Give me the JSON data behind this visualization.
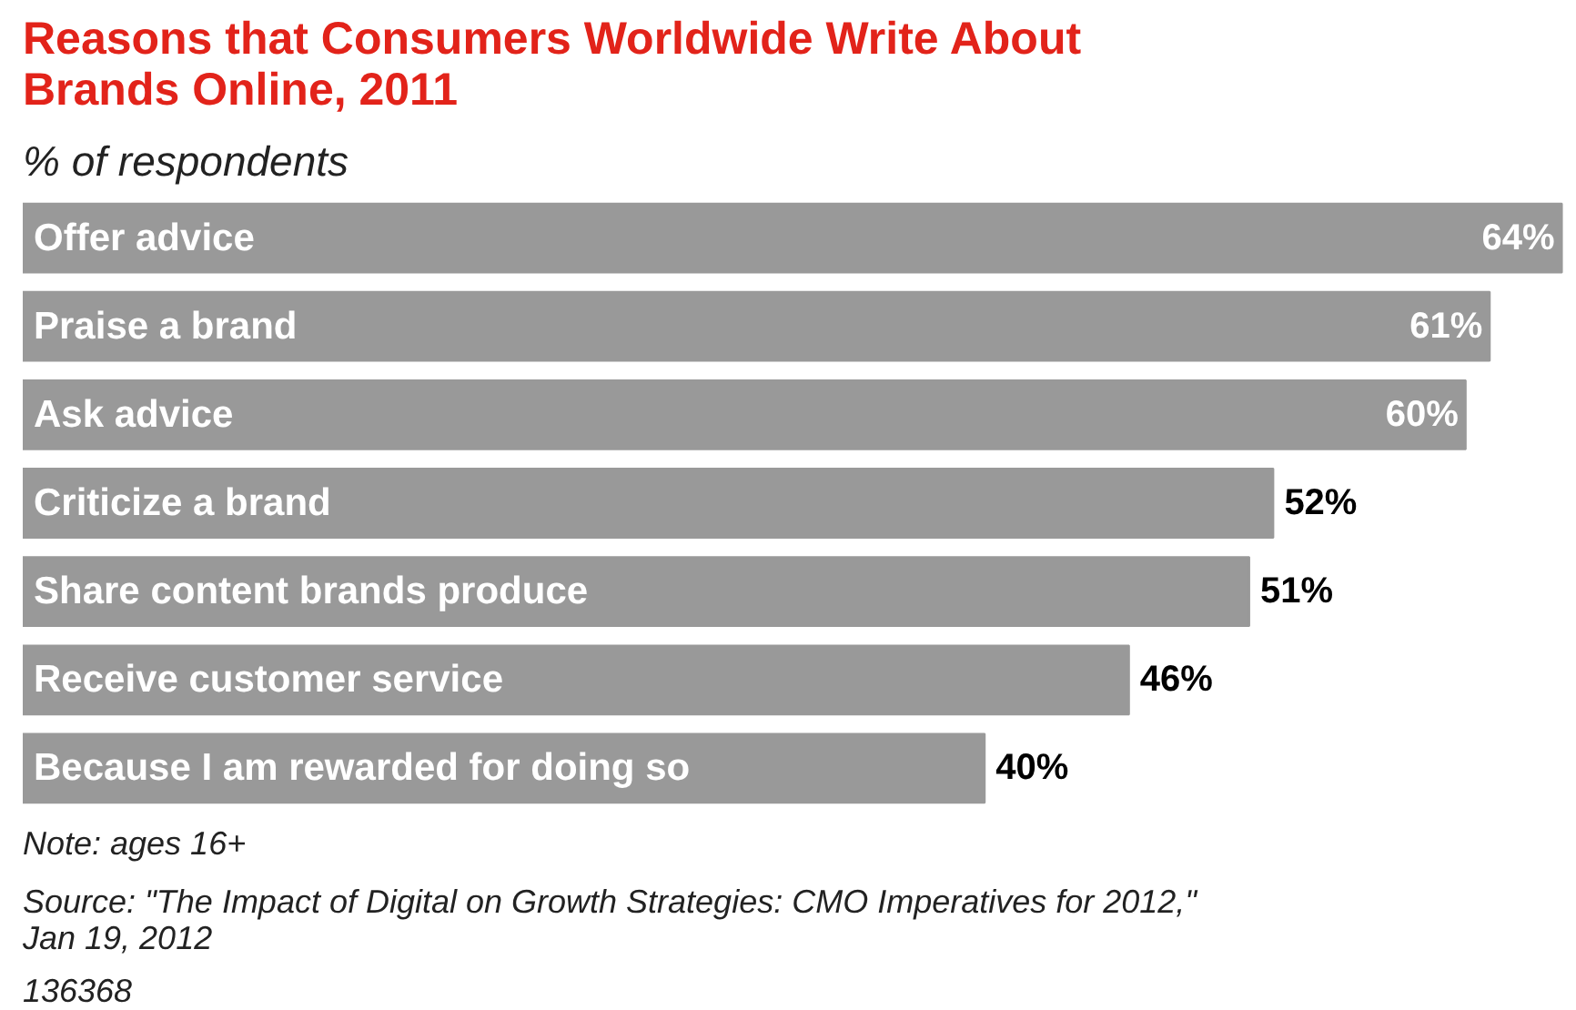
{
  "chart_data": {
    "type": "bar",
    "orientation": "horizontal",
    "title": "Reasons that Consumers Worldwide Write About Brands Online, 2011",
    "subtitle": "% of respondents",
    "categories": [
      "Offer advice",
      "Praise a brand",
      "Ask advice",
      "Criticize a brand",
      "Share content brands produce",
      "Receive customer service",
      "Because I am rewarded for doing so"
    ],
    "values": [
      64,
      61,
      60,
      52,
      51,
      46,
      40
    ],
    "value_labels": [
      "64%",
      "61%",
      "60%",
      "52%",
      "51%",
      "46%",
      "40%"
    ],
    "color": "#999999",
    "annotations": [
      "Note: ages 16+",
      "Source: \"The Impact of Digital on Growth Strategies: CMO Imperatives for 2012,\" Jan 19, 2012",
      "136368"
    ]
  }
}
